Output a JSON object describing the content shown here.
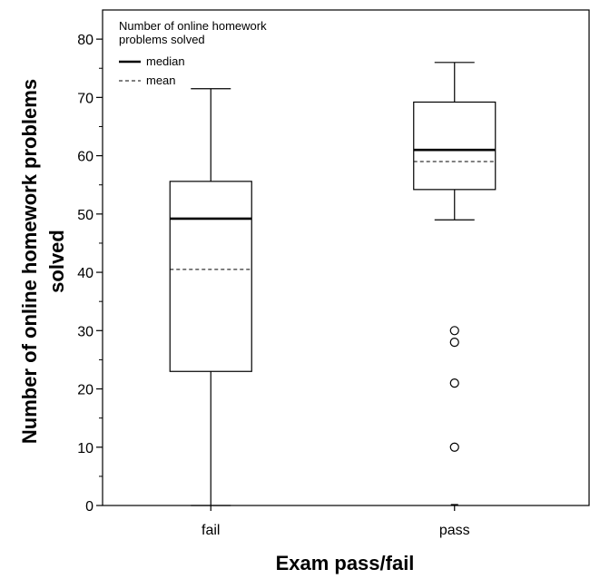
{
  "chart_data": {
    "type": "box",
    "xlabel": "Exam pass/fail",
    "ylabel_line1": "Number of online homework problems",
    "ylabel_line2": "solved",
    "ylim": [
      0,
      85
    ],
    "yticks": [
      0,
      10,
      20,
      30,
      40,
      50,
      60,
      70,
      80
    ],
    "categories": [
      "fail",
      "pass"
    ],
    "legend": {
      "title_line1": "Number of online homework",
      "title_line2": "problems solved",
      "median_label": "median",
      "mean_label": "mean",
      "position": "top-left"
    },
    "boxes": [
      {
        "category": "fail",
        "whisker_low": 0,
        "q1": 23,
        "median": 49.2,
        "q3": 55.6,
        "whisker_high": 71.5,
        "mean": 40.5,
        "outliers": []
      },
      {
        "category": "pass",
        "whisker_low": 49,
        "q1": 54.2,
        "median": 61,
        "q3": 69.2,
        "whisker_high": 76,
        "mean": 59,
        "outliers": [
          0,
          10,
          21,
          28,
          30
        ]
      }
    ],
    "grid": false
  }
}
